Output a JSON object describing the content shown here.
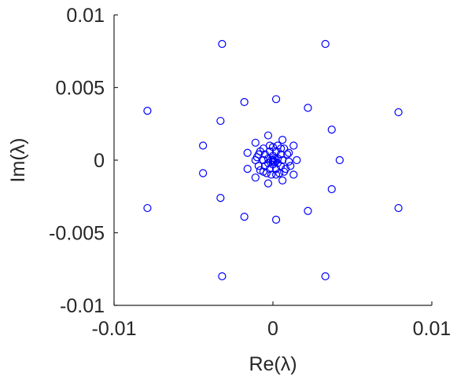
{
  "chart_data": {
    "type": "scatter",
    "title": "",
    "xlabel": "Re(λ)",
    "ylabel": "Im(λ)",
    "xlim": [
      -0.01,
      0.01
    ],
    "ylim": [
      -0.01,
      0.01
    ],
    "xticks": [
      -0.01,
      0,
      0.01
    ],
    "xtick_labels": [
      "-0.01",
      "0",
      "0.01"
    ],
    "yticks": [
      -0.01,
      -0.005,
      0,
      0.005,
      0.01
    ],
    "ytick_labels": [
      "-0.01",
      "-0.005",
      "0",
      "0.005",
      "0.01"
    ],
    "grid": false,
    "box": false,
    "marker": "circle-open",
    "color": "#0000ff",
    "series": [
      {
        "points": [
          [
            -0.0032,
            0.008
          ],
          [
            0.0033,
            0.008
          ],
          [
            -0.0032,
            -0.008
          ],
          [
            0.0033,
            -0.008
          ],
          [
            -0.0079,
            0.0034
          ],
          [
            0.0079,
            0.0033
          ],
          [
            -0.0079,
            -0.0033
          ],
          [
            0.0079,
            -0.0033
          ],
          [
            -0.0018,
            0.004
          ],
          [
            0.0002,
            0.0042
          ],
          [
            0.0022,
            0.0036
          ],
          [
            -0.0018,
            -0.0039
          ],
          [
            0.0002,
            -0.0041
          ],
          [
            0.0022,
            -0.0035
          ],
          [
            -0.0033,
            0.0027
          ],
          [
            -0.0044,
            0.001
          ],
          [
            -0.0044,
            -0.0009
          ],
          [
            -0.0033,
            -0.0026
          ],
          [
            0.0037,
            0.0021
          ],
          [
            0.0042,
            0.0
          ],
          [
            0.0037,
            -0.002
          ],
          [
            -0.0003,
            0.0017
          ],
          [
            0.0006,
            0.0014
          ],
          [
            0.0013,
            0.001
          ],
          [
            0.0015,
            0.0
          ],
          [
            0.0013,
            -0.001
          ],
          [
            0.0006,
            -0.0014
          ],
          [
            -0.0003,
            -0.0016
          ],
          [
            -0.0011,
            -0.0012
          ],
          [
            -0.0016,
            -0.0006
          ],
          [
            -0.0016,
            0.0005
          ],
          [
            -0.0011,
            0.0012
          ],
          [
            0.0,
            0.0009
          ],
          [
            0.0005,
            0.0008
          ],
          [
            0.0009,
            0.0004
          ],
          [
            0.001,
            -0.0001
          ],
          [
            0.0008,
            -0.0006
          ],
          [
            0.0004,
            -0.0009
          ],
          [
            -0.0001,
            -0.001
          ],
          [
            -0.0006,
            -0.0008
          ],
          [
            -0.0009,
            -0.0004
          ],
          [
            -0.0011,
            0.0
          ],
          [
            -0.0009,
            0.0004
          ],
          [
            -0.0006,
            0.0008
          ],
          [
            -0.0002,
            0.001
          ],
          [
            0.0003,
            0.001
          ],
          [
            0.0007,
            0.0008
          ],
          [
            0.001,
            0.0005
          ],
          [
            0.0011,
            -0.0004
          ],
          [
            0.0007,
            -0.0008
          ],
          [
            0.0002,
            -0.001
          ],
          [
            -0.0004,
            -0.0009
          ],
          [
            -0.0008,
            -0.0007
          ],
          [
            -0.001,
            0.0002
          ],
          [
            -0.0008,
            0.0006
          ],
          [
            0.0002,
            0.0006
          ],
          [
            0.0005,
            0.0004
          ],
          [
            0.0006,
            0.0
          ],
          [
            0.0005,
            -0.0004
          ],
          [
            0.0002,
            -0.0006
          ],
          [
            -0.0002,
            -0.0006
          ],
          [
            -0.0005,
            -0.0004
          ],
          [
            -0.0006,
            0.0
          ],
          [
            -0.0005,
            0.0004
          ],
          [
            -0.0002,
            0.0006
          ],
          [
            0.0,
            0.0003
          ],
          [
            0.0003,
            0.0001
          ],
          [
            0.0003,
            -0.0002
          ],
          [
            0.0,
            -0.0003
          ],
          [
            -0.0003,
            -0.0002
          ],
          [
            -0.0003,
            0.0001
          ],
          [
            0.0001,
            0.0001
          ],
          [
            -0.0001,
            0.0
          ],
          [
            0.0,
            -0.0001
          ],
          [
            0.0001,
            -0.0001
          ],
          [
            0.0,
            0.0
          ]
        ]
      }
    ]
  }
}
